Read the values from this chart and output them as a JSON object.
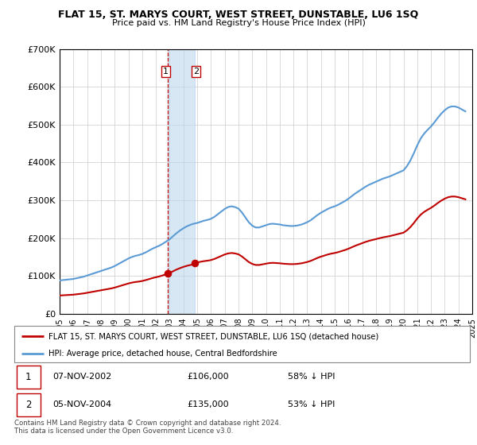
{
  "title": "FLAT 15, ST. MARYS COURT, WEST STREET, DUNSTABLE, LU6 1SQ",
  "subtitle": "Price paid vs. HM Land Registry's House Price Index (HPI)",
  "ylim": [
    0,
    700000
  ],
  "yticks": [
    0,
    100000,
    200000,
    300000,
    400000,
    500000,
    600000,
    700000
  ],
  "ytick_labels": [
    "£0",
    "£100K",
    "£200K",
    "£300K",
    "£400K",
    "£500K",
    "£600K",
    "£700K"
  ],
  "sale1_date": 2002.85,
  "sale1_price": 106000,
  "sale2_date": 2004.85,
  "sale2_price": 135000,
  "hpi_color": "#5b9bd5",
  "sold_color": "#c00000",
  "vline_color": "#c00000",
  "shade_color": "#bdd7ee",
  "legend_line1": "FLAT 15, ST. MARYS COURT, WEST STREET, DUNSTABLE, LU6 1SQ (detached house)",
  "legend_line2": "HPI: Average price, detached house, Central Bedfordshire",
  "table_row1": [
    "1",
    "07-NOV-2002",
    "£106,000",
    "58% ↓ HPI"
  ],
  "table_row2": [
    "2",
    "05-NOV-2004",
    "£135,000",
    "53% ↓ HPI"
  ],
  "footer": "Contains HM Land Registry data © Crown copyright and database right 2024.\nThis data is licensed under the Open Government Licence v3.0.",
  "hpi_x": [
    1995,
    1995.25,
    1995.5,
    1995.75,
    1996,
    1996.25,
    1996.5,
    1996.75,
    1997,
    1997.25,
    1997.5,
    1997.75,
    1998,
    1998.25,
    1998.5,
    1998.75,
    1999,
    1999.25,
    1999.5,
    1999.75,
    2000,
    2000.25,
    2000.5,
    2000.75,
    2001,
    2001.25,
    2001.5,
    2001.75,
    2002,
    2002.25,
    2002.5,
    2002.75,
    2003,
    2003.25,
    2003.5,
    2003.75,
    2004,
    2004.25,
    2004.5,
    2004.75,
    2005,
    2005.25,
    2005.5,
    2005.75,
    2006,
    2006.25,
    2006.5,
    2006.75,
    2007,
    2007.25,
    2007.5,
    2007.75,
    2008,
    2008.25,
    2008.5,
    2008.75,
    2009,
    2009.25,
    2009.5,
    2009.75,
    2010,
    2010.25,
    2010.5,
    2010.75,
    2011,
    2011.25,
    2011.5,
    2011.75,
    2012,
    2012.25,
    2012.5,
    2012.75,
    2013,
    2013.25,
    2013.5,
    2013.75,
    2014,
    2014.25,
    2014.5,
    2014.75,
    2015,
    2015.25,
    2015.5,
    2015.75,
    2016,
    2016.25,
    2016.5,
    2016.75,
    2017,
    2017.25,
    2017.5,
    2017.75,
    2018,
    2018.25,
    2018.5,
    2018.75,
    2019,
    2019.25,
    2019.5,
    2019.75,
    2020,
    2020.25,
    2020.5,
    2020.75,
    2021,
    2021.25,
    2021.5,
    2021.75,
    2022,
    2022.25,
    2022.5,
    2022.75,
    2023,
    2023.25,
    2023.5,
    2023.75,
    2024,
    2024.25,
    2024.5
  ],
  "hpi_y": [
    88000,
    89000,
    90000,
    91000,
    92000,
    94000,
    96000,
    98000,
    101000,
    104000,
    107000,
    110000,
    113000,
    116000,
    119000,
    122000,
    126000,
    131000,
    136000,
    141000,
    146000,
    150000,
    153000,
    155000,
    158000,
    162000,
    167000,
    172000,
    176000,
    180000,
    185000,
    191000,
    197000,
    205000,
    213000,
    220000,
    226000,
    231000,
    235000,
    238000,
    240000,
    243000,
    246000,
    248000,
    251000,
    256000,
    263000,
    270000,
    277000,
    282000,
    284000,
    282000,
    278000,
    268000,
    255000,
    242000,
    233000,
    228000,
    228000,
    231000,
    234000,
    237000,
    238000,
    237000,
    236000,
    234000,
    233000,
    232000,
    232000,
    233000,
    235000,
    238000,
    242000,
    247000,
    254000,
    261000,
    267000,
    272000,
    277000,
    281000,
    284000,
    288000,
    293000,
    298000,
    304000,
    311000,
    318000,
    324000,
    330000,
    336000,
    341000,
    345000,
    349000,
    353000,
    357000,
    360000,
    363000,
    367000,
    371000,
    375000,
    379000,
    390000,
    405000,
    424000,
    445000,
    463000,
    476000,
    486000,
    495000,
    506000,
    518000,
    529000,
    538000,
    545000,
    548000,
    548000,
    545000,
    540000,
    535000
  ],
  "xmin": 1995,
  "xmax": 2025,
  "xtick_years": [
    1995,
    1996,
    1997,
    1998,
    1999,
    2000,
    2001,
    2002,
    2003,
    2004,
    2005,
    2006,
    2007,
    2008,
    2009,
    2010,
    2011,
    2012,
    2013,
    2014,
    2015,
    2016,
    2017,
    2018,
    2019,
    2020,
    2021,
    2022,
    2023,
    2024,
    2025
  ]
}
